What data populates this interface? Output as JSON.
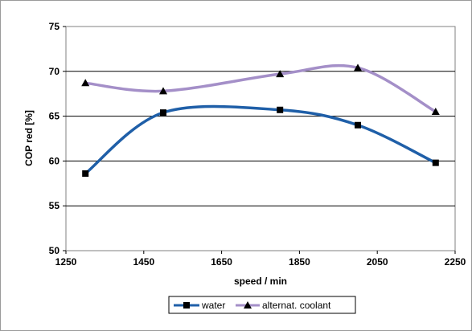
{
  "chart_data": {
    "type": "line",
    "title": "",
    "xlabel": "speed / min",
    "ylabel": "COP red [%]",
    "xlim": [
      1250,
      2250
    ],
    "ylim": [
      50,
      75
    ],
    "x_ticks": [
      "1250",
      "1450",
      "1650",
      "1850",
      "2050",
      "2250"
    ],
    "y_ticks": [
      "50",
      "55",
      "60",
      "65",
      "70",
      "75"
    ],
    "grid": "horizontal",
    "legend_position": "bottom",
    "x": [
      1300,
      1500,
      1800,
      2000,
      2200
    ],
    "series": [
      {
        "name": "water",
        "values": [
          58.6,
          65.4,
          65.7,
          64.0,
          59.8
        ],
        "color": "#1f5fa8",
        "marker": "square"
      },
      {
        "name": "alternat. coolant",
        "values": [
          68.7,
          67.8,
          69.7,
          70.4,
          65.5
        ],
        "color": "#a48fc8",
        "marker": "triangle"
      }
    ]
  }
}
